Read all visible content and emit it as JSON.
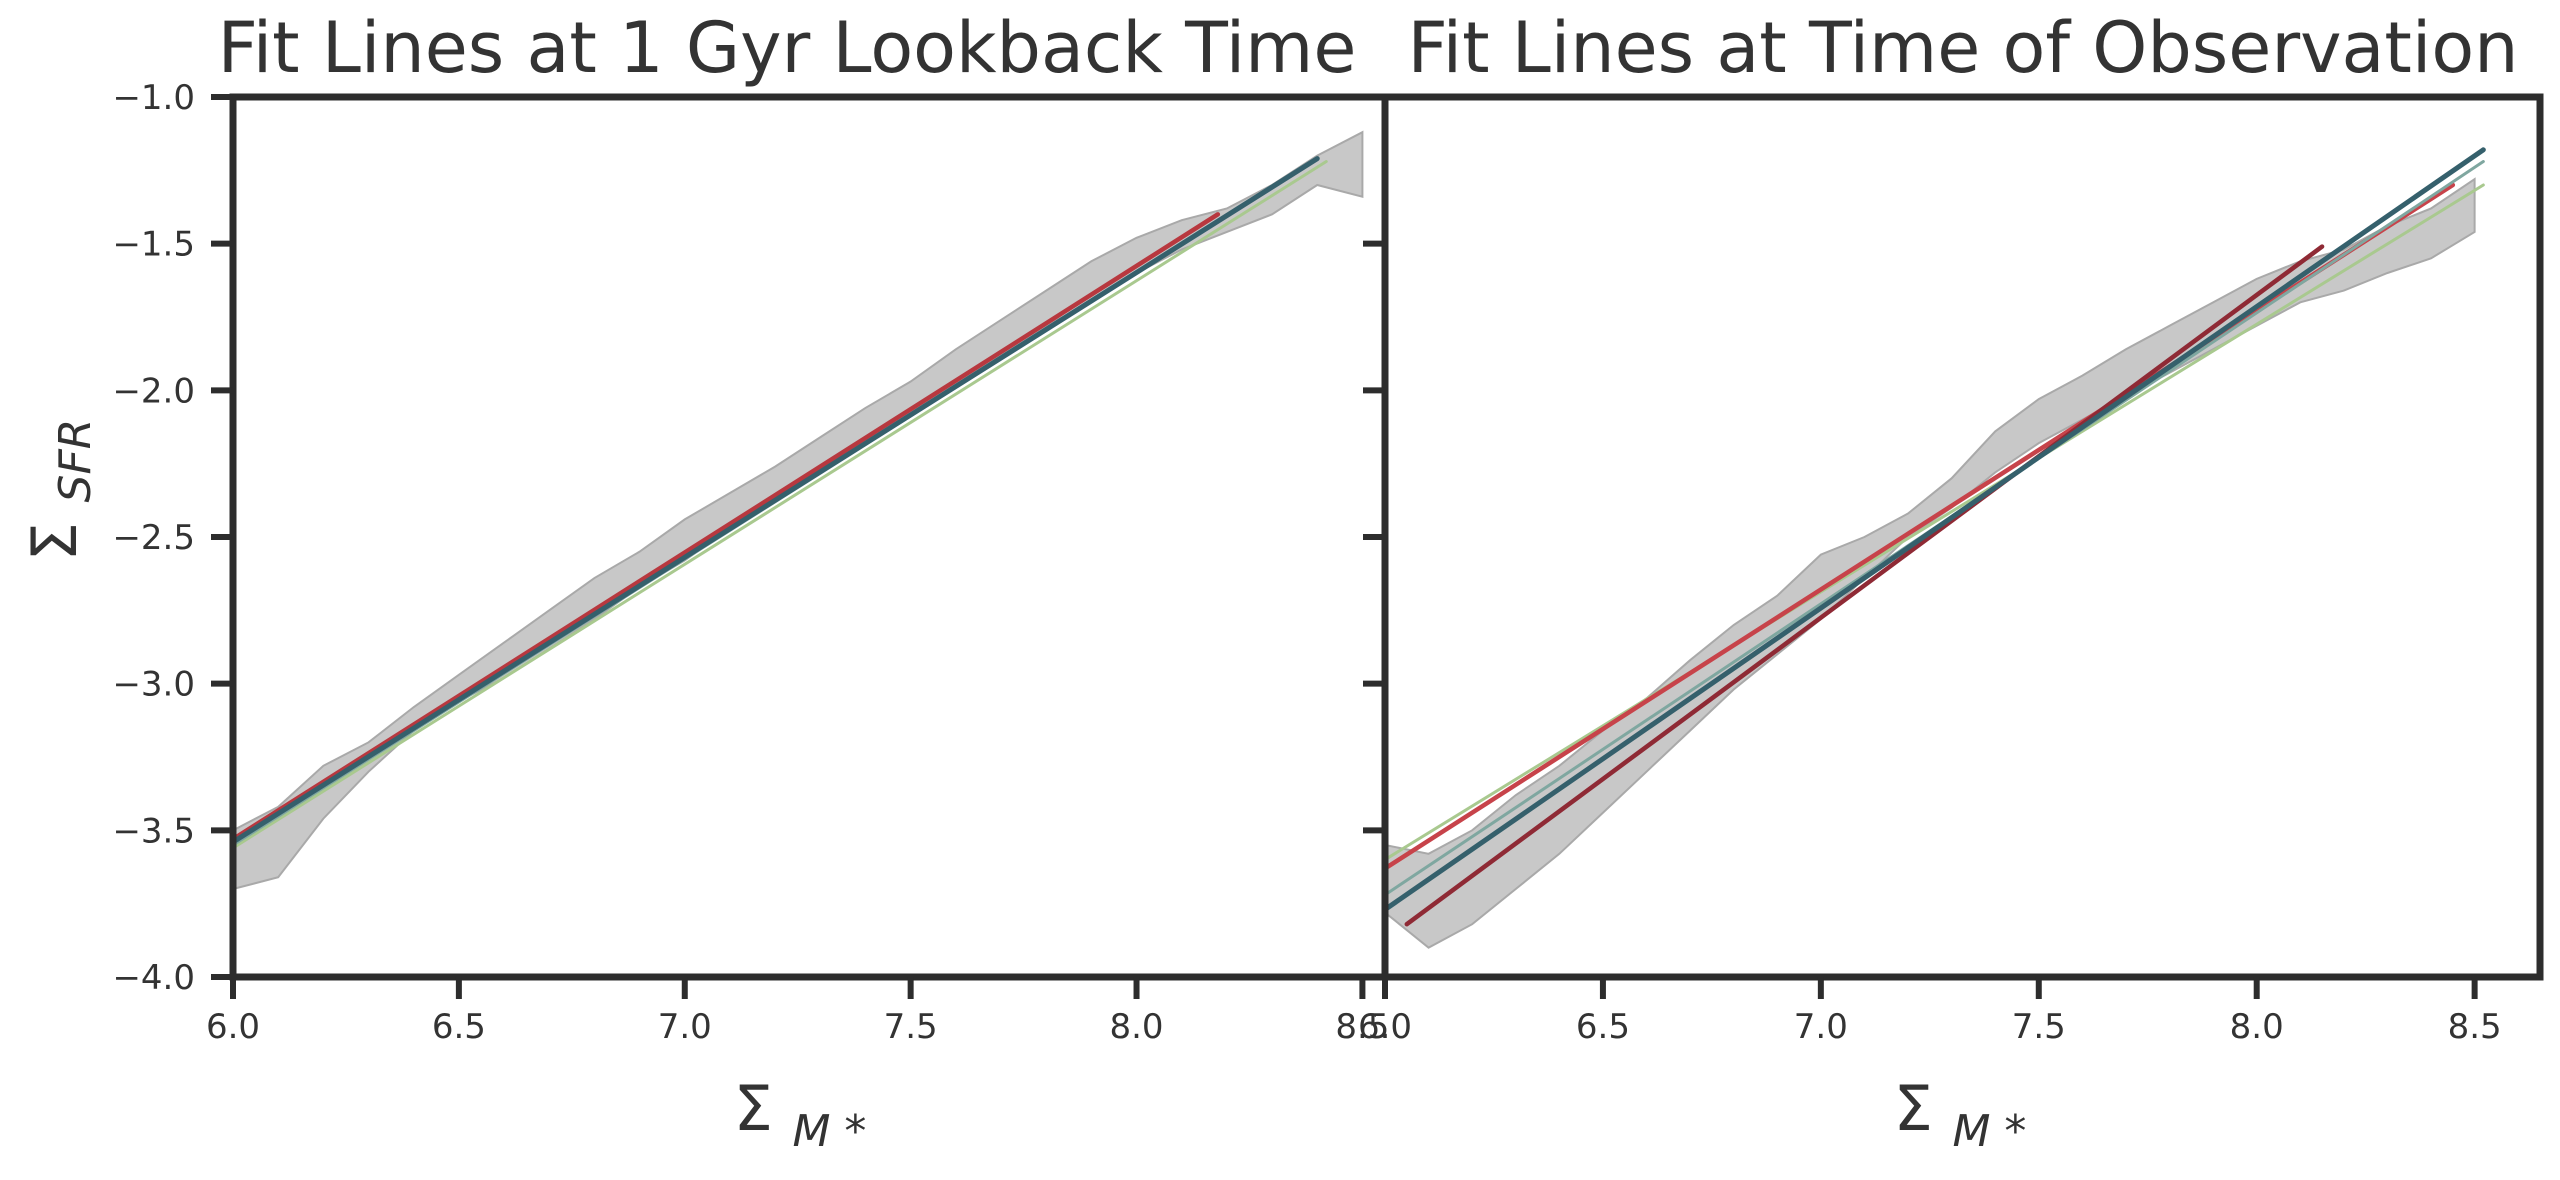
{
  "chart_data": [
    {
      "type": "line",
      "title": "Fit Lines at 1 Gyr Lookback Time",
      "xlabel": "Σ",
      "xlabel_sub": "M *",
      "ylabel": "Σ",
      "ylabel_sub": "SFR",
      "xlim": [
        6.0,
        8.55
      ],
      "ylim": [
        -4.0,
        -1.0
      ],
      "xticks": [
        "6.0",
        "6.5",
        "7.0",
        "7.5",
        "8.0",
        "8.5"
      ],
      "yticks": [
        "−1.0",
        "−1.5",
        "−2.0",
        "−2.5",
        "−3.0",
        "−3.5",
        "−4.0"
      ],
      "grid": false,
      "band": {
        "x": [
          6.0,
          6.1,
          6.2,
          6.3,
          6.4,
          6.5,
          6.6,
          6.7,
          6.8,
          6.9,
          7.0,
          7.1,
          7.2,
          7.3,
          7.4,
          7.5,
          7.6,
          7.7,
          7.8,
          7.9,
          8.0,
          8.1,
          8.2,
          8.3,
          8.4,
          8.5
        ],
        "upper": [
          -3.5,
          -3.42,
          -3.28,
          -3.2,
          -3.08,
          -2.97,
          -2.86,
          -2.75,
          -2.64,
          -2.55,
          -2.44,
          -2.35,
          -2.26,
          -2.16,
          -2.06,
          -1.97,
          -1.86,
          -1.76,
          -1.66,
          -1.56,
          -1.48,
          -1.42,
          -1.38,
          -1.3,
          -1.2,
          -1.12
        ],
        "lower": [
          -3.7,
          -3.66,
          -3.46,
          -3.3,
          -3.16,
          -3.06,
          -2.98,
          -2.88,
          -2.78,
          -2.67,
          -2.58,
          -2.47,
          -2.37,
          -2.28,
          -2.18,
          -2.08,
          -1.98,
          -1.88,
          -1.78,
          -1.7,
          -1.6,
          -1.52,
          -1.46,
          -1.4,
          -1.3,
          -1.34
        ]
      },
      "series": [
        {
          "color": "#b8383f",
          "width": 4.5,
          "x": [
            6.0,
            8.18
          ],
          "y": [
            -3.53,
            -1.4
          ]
        },
        {
          "color": "#a9c98f",
          "width": 3,
          "x": [
            6.0,
            8.42
          ],
          "y": [
            -3.56,
            -1.22
          ]
        },
        {
          "color": "#7fa7a0",
          "width": 3,
          "x": [
            6.0,
            8.4
          ],
          "y": [
            -3.55,
            -1.21
          ]
        },
        {
          "color": "#35606c",
          "width": 5,
          "x": [
            6.0,
            8.4
          ],
          "y": [
            -3.54,
            -1.21
          ]
        }
      ]
    },
    {
      "type": "line",
      "title": "Fit Lines at Time of Observation",
      "xlabel": "Σ",
      "xlabel_sub": "M *",
      "xlim": [
        6.0,
        8.65
      ],
      "ylim": [
        -4.0,
        -1.0
      ],
      "xticks": [
        "6.0",
        "6.5",
        "7.0",
        "7.5",
        "8.0",
        "8.5"
      ],
      "grid": false,
      "band": {
        "x": [
          6.0,
          6.1,
          6.2,
          6.3,
          6.4,
          6.5,
          6.6,
          6.7,
          6.8,
          6.9,
          7.0,
          7.1,
          7.2,
          7.3,
          7.4,
          7.5,
          7.6,
          7.7,
          7.8,
          7.9,
          8.0,
          8.1,
          8.2,
          8.3,
          8.4,
          8.5
        ],
        "upper": [
          -3.55,
          -3.58,
          -3.5,
          -3.38,
          -3.28,
          -3.16,
          -3.05,
          -2.92,
          -2.8,
          -2.7,
          -2.56,
          -2.5,
          -2.42,
          -2.3,
          -2.14,
          -2.03,
          -1.95,
          -1.86,
          -1.78,
          -1.7,
          -1.62,
          -1.56,
          -1.52,
          -1.44,
          -1.38,
          -1.28
        ],
        "lower": [
          -3.78,
          -3.9,
          -3.82,
          -3.7,
          -3.58,
          -3.44,
          -3.3,
          -3.16,
          -3.02,
          -2.9,
          -2.78,
          -2.64,
          -2.5,
          -2.4,
          -2.28,
          -2.18,
          -2.1,
          -2.02,
          -1.94,
          -1.86,
          -1.78,
          -1.7,
          -1.66,
          -1.6,
          -1.55,
          -1.46
        ]
      },
      "series": [
        {
          "color": "#a9c98f",
          "width": 3,
          "x": [
            6.0,
            8.52
          ],
          "y": [
            -3.6,
            -1.3
          ]
        },
        {
          "color": "#c7434a",
          "width": 4.5,
          "x": [
            6.0,
            8.45
          ],
          "y": [
            -3.63,
            -1.3
          ]
        },
        {
          "color": "#7fa7a0",
          "width": 3,
          "x": [
            6.0,
            8.52
          ],
          "y": [
            -3.72,
            -1.22
          ]
        },
        {
          "color": "#8f2a35",
          "width": 4.5,
          "x": [
            6.05,
            8.15
          ],
          "y": [
            -3.82,
            -1.51
          ]
        },
        {
          "color": "#35606c",
          "width": 5,
          "x": [
            6.0,
            8.52
          ],
          "y": [
            -3.77,
            -1.18
          ]
        }
      ]
    }
  ]
}
